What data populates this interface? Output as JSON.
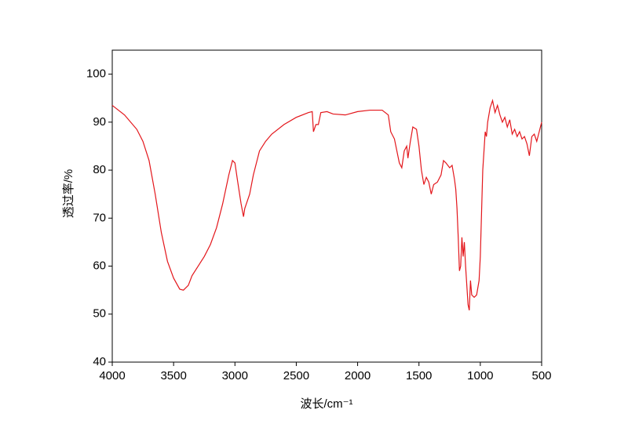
{
  "chart_data": {
    "type": "line",
    "x_label": "波长/cm⁻¹",
    "y_label": "透过率/%",
    "x": [
      4000,
      3900,
      3800,
      3750,
      3700,
      3650,
      3600,
      3550,
      3500,
      3450,
      3420,
      3380,
      3350,
      3300,
      3250,
      3200,
      3150,
      3100,
      3050,
      3020,
      3000,
      2980,
      2950,
      2930,
      2920,
      2880,
      2850,
      2800,
      2750,
      2700,
      2600,
      2500,
      2400,
      2370,
      2360,
      2340,
      2320,
      2300,
      2250,
      2200,
      2100,
      2000,
      1900,
      1800,
      1750,
      1730,
      1700,
      1680,
      1660,
      1640,
      1620,
      1600,
      1590,
      1570,
      1550,
      1520,
      1500,
      1480,
      1460,
      1440,
      1420,
      1400,
      1380,
      1350,
      1320,
      1300,
      1280,
      1250,
      1230,
      1210,
      1200,
      1190,
      1180,
      1170,
      1160,
      1150,
      1140,
      1130,
      1120,
      1110,
      1100,
      1090,
      1080,
      1070,
      1050,
      1030,
      1010,
      1000,
      980,
      960,
      950,
      940,
      920,
      900,
      880,
      860,
      840,
      820,
      800,
      780,
      760,
      740,
      720,
      700,
      680,
      660,
      640,
      620,
      600,
      580,
      560,
      540,
      520,
      500
    ],
    "values": [
      93.5,
      91.5,
      88.5,
      86,
      82,
      75,
      67,
      61,
      57.5,
      55.2,
      55,
      56,
      58,
      60,
      62,
      64.5,
      68,
      73,
      79,
      82,
      81.5,
      78,
      73,
      70.3,
      72,
      75,
      79,
      84,
      86,
      87.5,
      89.5,
      91,
      92,
      92.2,
      88,
      89.5,
      89.5,
      92,
      92.2,
      91.7,
      91.5,
      92.2,
      92.5,
      92.5,
      91.5,
      88,
      86.5,
      84,
      81.5,
      80.5,
      84,
      85,
      82.5,
      86,
      89,
      88.5,
      85,
      80,
      77,
      78.5,
      77.5,
      75,
      77,
      77.5,
      79,
      82,
      81.5,
      80.5,
      81,
      78,
      76,
      72,
      66,
      59,
      60,
      66,
      62,
      65,
      60,
      56,
      52,
      50.8,
      57,
      54,
      53.5,
      54,
      57,
      62,
      80,
      88,
      87,
      90,
      93,
      94.5,
      92,
      93.5,
      91.5,
      90,
      91,
      89,
      90.5,
      87.5,
      88.5,
      87,
      88,
      86.5,
      87,
      85.5,
      83,
      87,
      87.5,
      86,
      88,
      90
    ],
    "color": "#e3161b",
    "xlim": [
      4000,
      500
    ],
    "xticks": [
      4000,
      3500,
      3000,
      2500,
      2000,
      1500,
      1000,
      500
    ],
    "ylim": [
      40,
      105
    ],
    "yticks": [
      40,
      50,
      60,
      70,
      80,
      90,
      100
    ]
  }
}
